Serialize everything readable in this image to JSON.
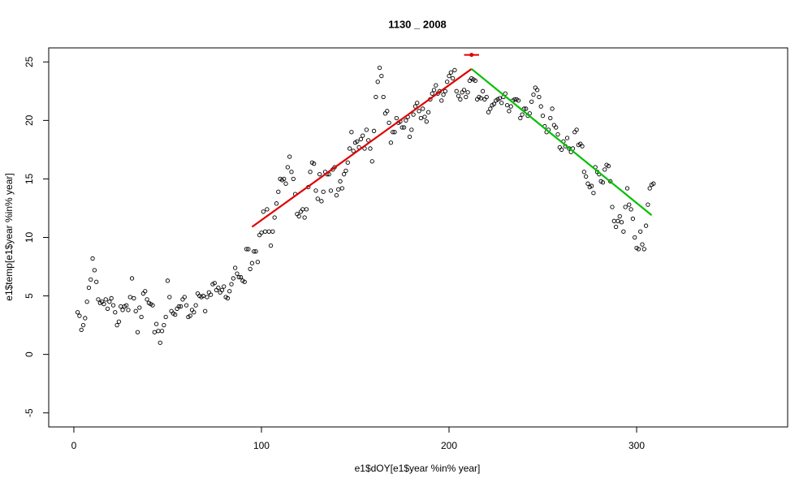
{
  "chart_data": {
    "type": "scatter",
    "title": "1130 _ 2008",
    "x_label": "e1$dOY[e1$year %in% year]",
    "y_label": "e1$temp[e1$year %in% year]",
    "xlim": [
      -13.4,
      380.5
    ],
    "ylim": [
      -6.2,
      26.2
    ],
    "xticks": [
      0,
      100,
      200,
      300
    ],
    "yticks": [
      -5,
      0,
      5,
      10,
      15,
      20,
      25
    ],
    "series": [
      {
        "type": "scatter",
        "color": "#000000",
        "x": [
          2,
          3,
          4,
          5,
          6,
          7,
          8,
          9,
          10,
          11,
          12,
          13,
          14,
          15,
          16,
          17,
          18,
          19,
          20,
          21,
          22,
          23,
          24,
          25,
          26,
          27,
          28,
          29,
          30,
          31,
          32,
          33,
          34,
          35,
          36,
          37,
          38,
          39,
          40,
          41,
          42,
          43,
          44,
          45,
          46,
          47,
          48,
          49,
          50,
          51,
          52,
          53,
          54,
          55,
          56,
          57,
          58,
          59,
          60,
          61,
          62,
          63,
          64,
          65,
          66,
          67,
          68,
          69,
          70,
          71,
          72,
          73,
          74,
          75,
          76,
          77,
          78,
          79,
          80,
          81,
          82,
          83,
          84,
          85,
          86,
          87,
          88,
          89,
          90,
          91,
          92,
          93,
          94,
          95,
          96,
          97,
          98,
          99,
          100,
          101,
          102,
          103,
          104,
          105,
          106,
          107,
          108,
          109,
          110,
          111,
          112,
          113,
          114,
          115,
          116,
          117,
          118,
          119,
          120,
          121,
          122,
          123,
          124,
          125,
          126,
          127,
          128,
          129,
          130,
          131,
          132,
          133,
          134,
          135,
          136,
          137,
          138,
          139,
          140,
          141,
          142,
          143,
          144,
          145,
          146,
          147,
          148,
          149,
          150,
          151,
          152,
          153,
          154,
          155,
          156,
          157,
          158,
          159,
          160,
          161,
          162,
          163,
          164,
          165,
          166,
          167,
          168,
          169,
          170,
          171,
          172,
          173,
          174,
          175,
          176,
          177,
          178,
          179,
          180,
          181,
          182,
          183,
          184,
          185,
          186,
          187,
          188,
          189,
          190,
          191,
          192,
          193,
          194,
          195,
          196,
          197,
          198,
          199,
          200,
          201,
          202,
          203,
          204,
          205,
          206,
          207,
          208,
          209,
          210,
          211,
          212,
          213,
          214,
          215,
          216,
          217,
          218,
          219,
          220,
          221,
          222,
          223,
          224,
          225,
          226,
          227,
          228,
          229,
          230,
          231,
          232,
          233,
          234,
          235,
          236,
          237,
          238,
          239,
          240,
          241,
          242,
          243,
          244,
          245,
          246,
          247,
          248,
          249,
          250,
          251,
          252,
          253,
          254,
          255,
          256,
          257,
          258,
          259,
          260,
          261,
          262,
          263,
          264,
          265,
          266,
          267,
          268,
          269,
          270,
          271,
          272,
          273,
          274,
          275,
          276,
          277,
          278,
          279,
          280,
          281,
          282,
          283,
          284,
          285,
          286,
          287,
          288,
          289,
          290,
          291,
          292,
          293,
          294,
          295,
          296,
          297,
          298,
          299,
          300,
          301,
          302,
          303,
          304,
          305,
          306,
          307,
          308,
          309
        ],
        "values": [
          3.6,
          3.3,
          2.1,
          2.5,
          3.1,
          4.5,
          5.7,
          6.4,
          8.2,
          7.2,
          6.2,
          4.7,
          4.4,
          4.5,
          4.3,
          4.7,
          3.9,
          4.5,
          4.8,
          4.2,
          3.6,
          2.5,
          2.8,
          4.1,
          3.8,
          4.1,
          4.2,
          3.8,
          4.9,
          6.5,
          4.8,
          3.7,
          1.9,
          4.0,
          3.2,
          5.2,
          5.4,
          4.7,
          4.4,
          4.3,
          4.2,
          1.9,
          2.6,
          2.0,
          1.0,
          2.0,
          2.5,
          3.2,
          6.3,
          4.9,
          3.7,
          3.5,
          3.4,
          3.9,
          4.1,
          4.1,
          4.7,
          4.9,
          4.2,
          3.2,
          3.3,
          3.8,
          3.6,
          4.2,
          5.2,
          5.0,
          4.9,
          5.0,
          3.7,
          4.9,
          5.3,
          5.1,
          6.0,
          6.1,
          5.5,
          5.7,
          5.3,
          5.5,
          5.8,
          4.9,
          4.8,
          5.4,
          6.0,
          6.5,
          7.4,
          6.9,
          6.6,
          6.6,
          6.3,
          6.2,
          9.0,
          9.0,
          7.3,
          7.8,
          8.8,
          8.8,
          7.9,
          10.2,
          10.4,
          12.2,
          10.5,
          12.4,
          10.5,
          9.3,
          10.5,
          11.7,
          12.9,
          13.9,
          15.0,
          14.9,
          15.0,
          14.6,
          16.0,
          16.9,
          15.6,
          15.0,
          13.7,
          12.0,
          11.8,
          12.2,
          12.4,
          11.7,
          12.4,
          14.3,
          15.6,
          16.4,
          16.3,
          14.0,
          13.3,
          15.4,
          13.1,
          13.9,
          15.6,
          15.4,
          15.4,
          14.0,
          15.8,
          16.0,
          13.6,
          14.1,
          14.8,
          14.2,
          15.4,
          15.7,
          16.4,
          17.6,
          19.0,
          17.4,
          18.1,
          18.2,
          17.7,
          18.4,
          18.7,
          17.6,
          19.2,
          18.3,
          17.6,
          16.5,
          19.1,
          22.0,
          23.3,
          24.5,
          23.8,
          22.0,
          20.6,
          20.8,
          19.8,
          18.1,
          19.0,
          19.0,
          20.2,
          19.8,
          19.9,
          19.4,
          19.4,
          20.0,
          20.3,
          18.6,
          19.2,
          20.5,
          21.2,
          21.5,
          20.8,
          20.2,
          21.0,
          20.3,
          19.9,
          20.7,
          21.8,
          22.3,
          22.6,
          23.0,
          22.3,
          22.5,
          21.7,
          22.2,
          22.5,
          23.3,
          23.8,
          24.1,
          23.6,
          24.3,
          22.5,
          22.1,
          21.8,
          22.4,
          22.6,
          22.0,
          22.4,
          23.4,
          23.6,
          23.5,
          23.4,
          21.8,
          22.0,
          21.9,
          22.5,
          21.8,
          22.0,
          20.7,
          21.0,
          21.3,
          21.4,
          21.7,
          21.8,
          21.9,
          21.5,
          22.0,
          22.3,
          21.3,
          20.8,
          21.2,
          21.7,
          21.8,
          21.8,
          21.7,
          20.2,
          20.5,
          21.0,
          21.0,
          20.4,
          20.6,
          21.6,
          22.2,
          22.8,
          22.6,
          22.0,
          21.2,
          20.4,
          19.5,
          19.0,
          19.2,
          20.2,
          21.0,
          19.6,
          19.4,
          18.8,
          17.7,
          17.5,
          18.2,
          17.8,
          18.5,
          17.6,
          17.3,
          17.6,
          19.0,
          19.2,
          17.9,
          18.0,
          17.8,
          15.6,
          15.2,
          14.6,
          14.3,
          14.4,
          13.8,
          16.0,
          15.6,
          15.4,
          14.8,
          14.7,
          15.8,
          16.2,
          16.1,
          14.8,
          12.6,
          11.4,
          10.9,
          11.4,
          11.8,
          11.3,
          10.5,
          12.6,
          14.2,
          12.8,
          12.4,
          11.6,
          10.0,
          9.1,
          9.0,
          10.5,
          9.4,
          9.0,
          11.0,
          12.8,
          14.2,
          14.5,
          14.6
        ]
      },
      {
        "type": "line",
        "color": "#e00000",
        "x": [
          95,
          212
        ],
        "values": [
          10.9,
          24.4
        ]
      },
      {
        "type": "line",
        "color": "#00c000",
        "x": [
          212,
          308
        ],
        "values": [
          24.4,
          11.9
        ]
      },
      {
        "type": "errorbar",
        "color": "#e00000",
        "x": [
          212
        ],
        "values": [
          25.6
        ],
        "x_low": [
          208
        ],
        "x_high": [
          216
        ]
      }
    ]
  }
}
